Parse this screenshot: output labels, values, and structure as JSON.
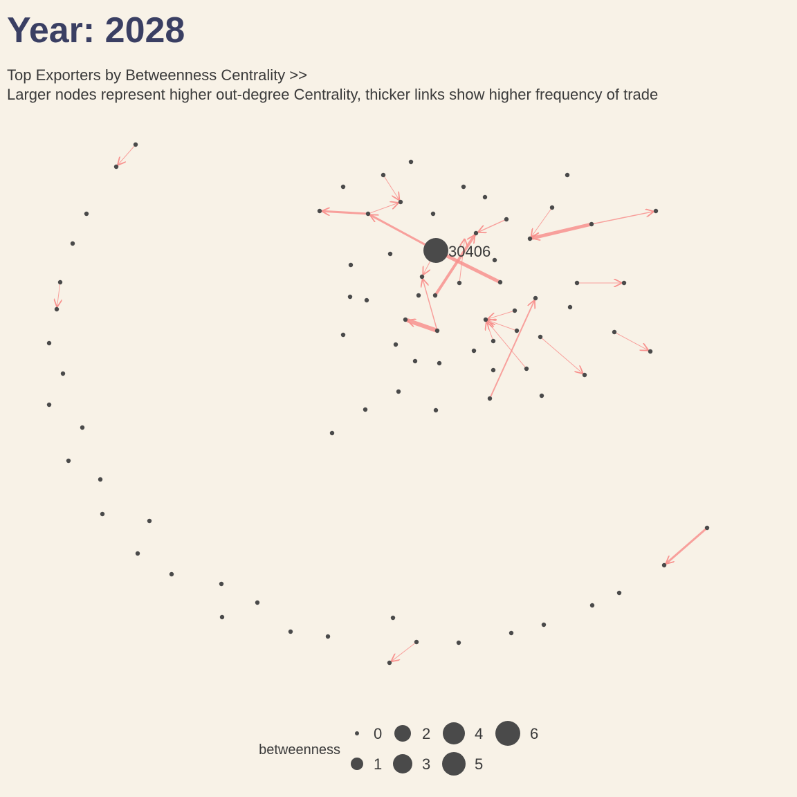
{
  "title": "Year: 2028",
  "subtitle": {
    "line1": "Top Exporters by Betweenness Centrality >>",
    "line2": "Larger nodes represent higher out-degree Centrality, thicker links show higher frequency of trade"
  },
  "colors": {
    "background": "#f8f2e7",
    "node": "#4a4a4a",
    "edge": "#f8928e",
    "title": "#3a3f63"
  },
  "node_label": "30406",
  "legend": {
    "title": "betweenness",
    "items": [
      "0",
      "1",
      "2",
      "3",
      "4",
      "5",
      "6"
    ]
  }
}
